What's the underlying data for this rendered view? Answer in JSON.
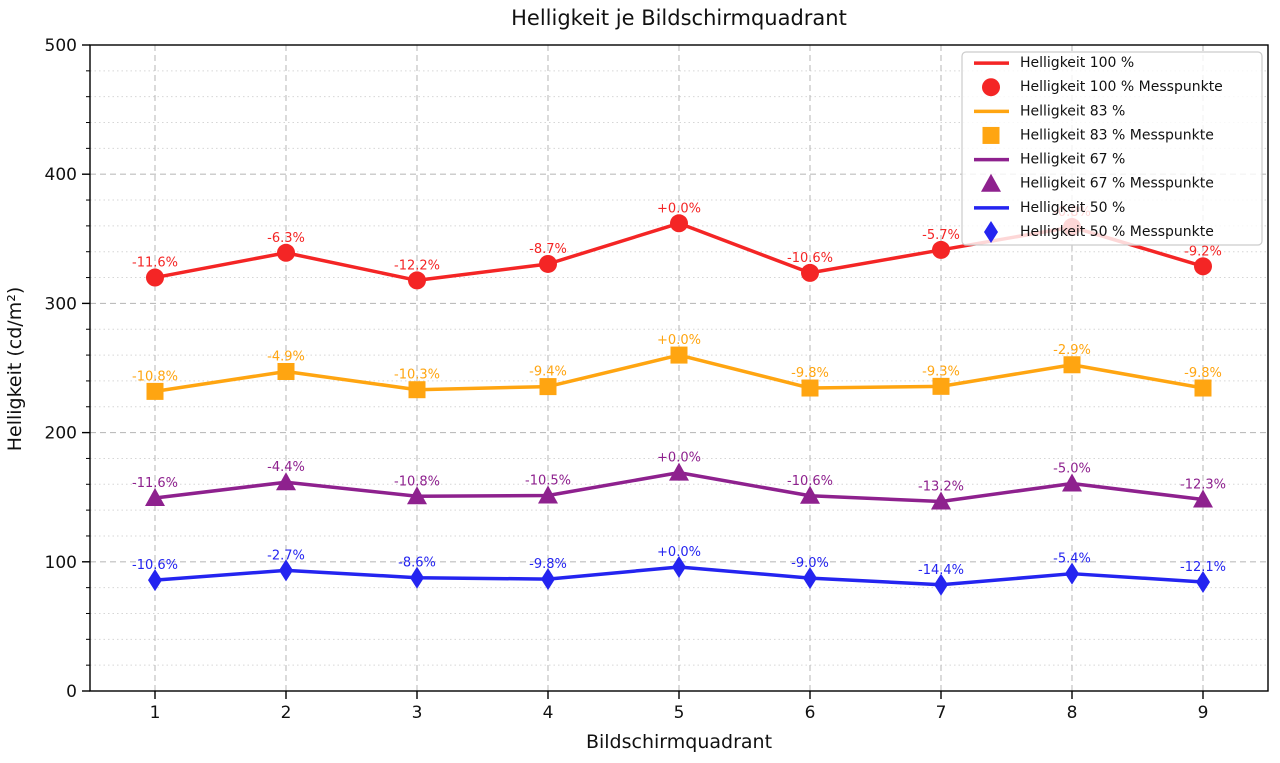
{
  "title": "Helligkeit je Bildschirmquadrant",
  "chart_data": {
    "type": "line",
    "title": "Helligkeit je Bildschirmquadrant",
    "xlabel": "Bildschirmquadrant",
    "ylabel": "Helligkeit (cd/m²)",
    "categories": [
      "1",
      "2",
      "3",
      "4",
      "5",
      "6",
      "7",
      "8",
      "9"
    ],
    "x_ticks": [
      "1",
      "2",
      "3",
      "4",
      "5",
      "6",
      "7",
      "8",
      "9"
    ],
    "y_ticks": [
      "0",
      "100",
      "200",
      "300",
      "400",
      "500"
    ],
    "ylim": [
      0,
      500
    ],
    "ytick_step": 100,
    "yminor_step": 20,
    "grid": {
      "major": "dashed",
      "minor": "dotted-horizontal"
    },
    "legend_position": "upper-right",
    "series": [
      {
        "name": "Helligkeit 100 %",
        "points_legend": "Helligkeit 100 % Messpunkte",
        "color": "#f42525",
        "marker": "circle",
        "values": [
          320.0,
          339.2,
          317.8,
          330.5,
          362.0,
          323.6,
          341.4,
          359.1,
          328.7
        ],
        "labels": [
          "-11.6%",
          "-6.3%",
          "-12.2%",
          "-8.7%",
          "+0.0%",
          "-10.6%",
          "-5.7%",
          "-0.8%",
          "-9.2%"
        ]
      },
      {
        "name": "Helligkeit 83 %",
        "points_legend": "Helligkeit 83 % Messpunkte",
        "color": "#ffa511",
        "marker": "square",
        "values": [
          231.9,
          247.3,
          233.2,
          235.6,
          260.0,
          234.5,
          235.8,
          252.5,
          234.5
        ],
        "labels": [
          "-10.8%",
          "-4.9%",
          "-10.3%",
          "-9.4%",
          "+0.0%",
          "-9.8%",
          "-9.3%",
          "-2.9%",
          "-9.8%"
        ]
      },
      {
        "name": "Helligkeit 67 %",
        "points_legend": "Helligkeit 67 % Messpunkte",
        "color": "#8e218e",
        "marker": "triangle",
        "values": [
          149.4,
          161.6,
          150.7,
          151.3,
          169.0,
          151.1,
          146.7,
          160.6,
          148.2
        ],
        "labels": [
          "-11.6%",
          "-4.4%",
          "-10.8%",
          "-10.5%",
          "+0.0%",
          "-10.6%",
          "-13.2%",
          "-5.0%",
          "-12.3%"
        ]
      },
      {
        "name": "Helligkeit 50 %",
        "points_legend": "Helligkeit 50 % Messpunkte",
        "color": "#2424f0",
        "marker": "diamond",
        "values": [
          85.8,
          93.4,
          87.7,
          86.6,
          96.0,
          87.4,
          82.2,
          90.8,
          84.4
        ],
        "labels": [
          "-10.6%",
          "-2.7%",
          "-8.6%",
          "-9.8%",
          "+0.0%",
          "-9.0%",
          "-14.4%",
          "-5.4%",
          "-12.1%"
        ]
      }
    ],
    "colors": {
      "axis": "#000000",
      "grid_major": "#bdbdbd",
      "grid_minor": "#d6d6d6",
      "legend_border": "#cccccc",
      "legend_text": "#111111"
    }
  }
}
